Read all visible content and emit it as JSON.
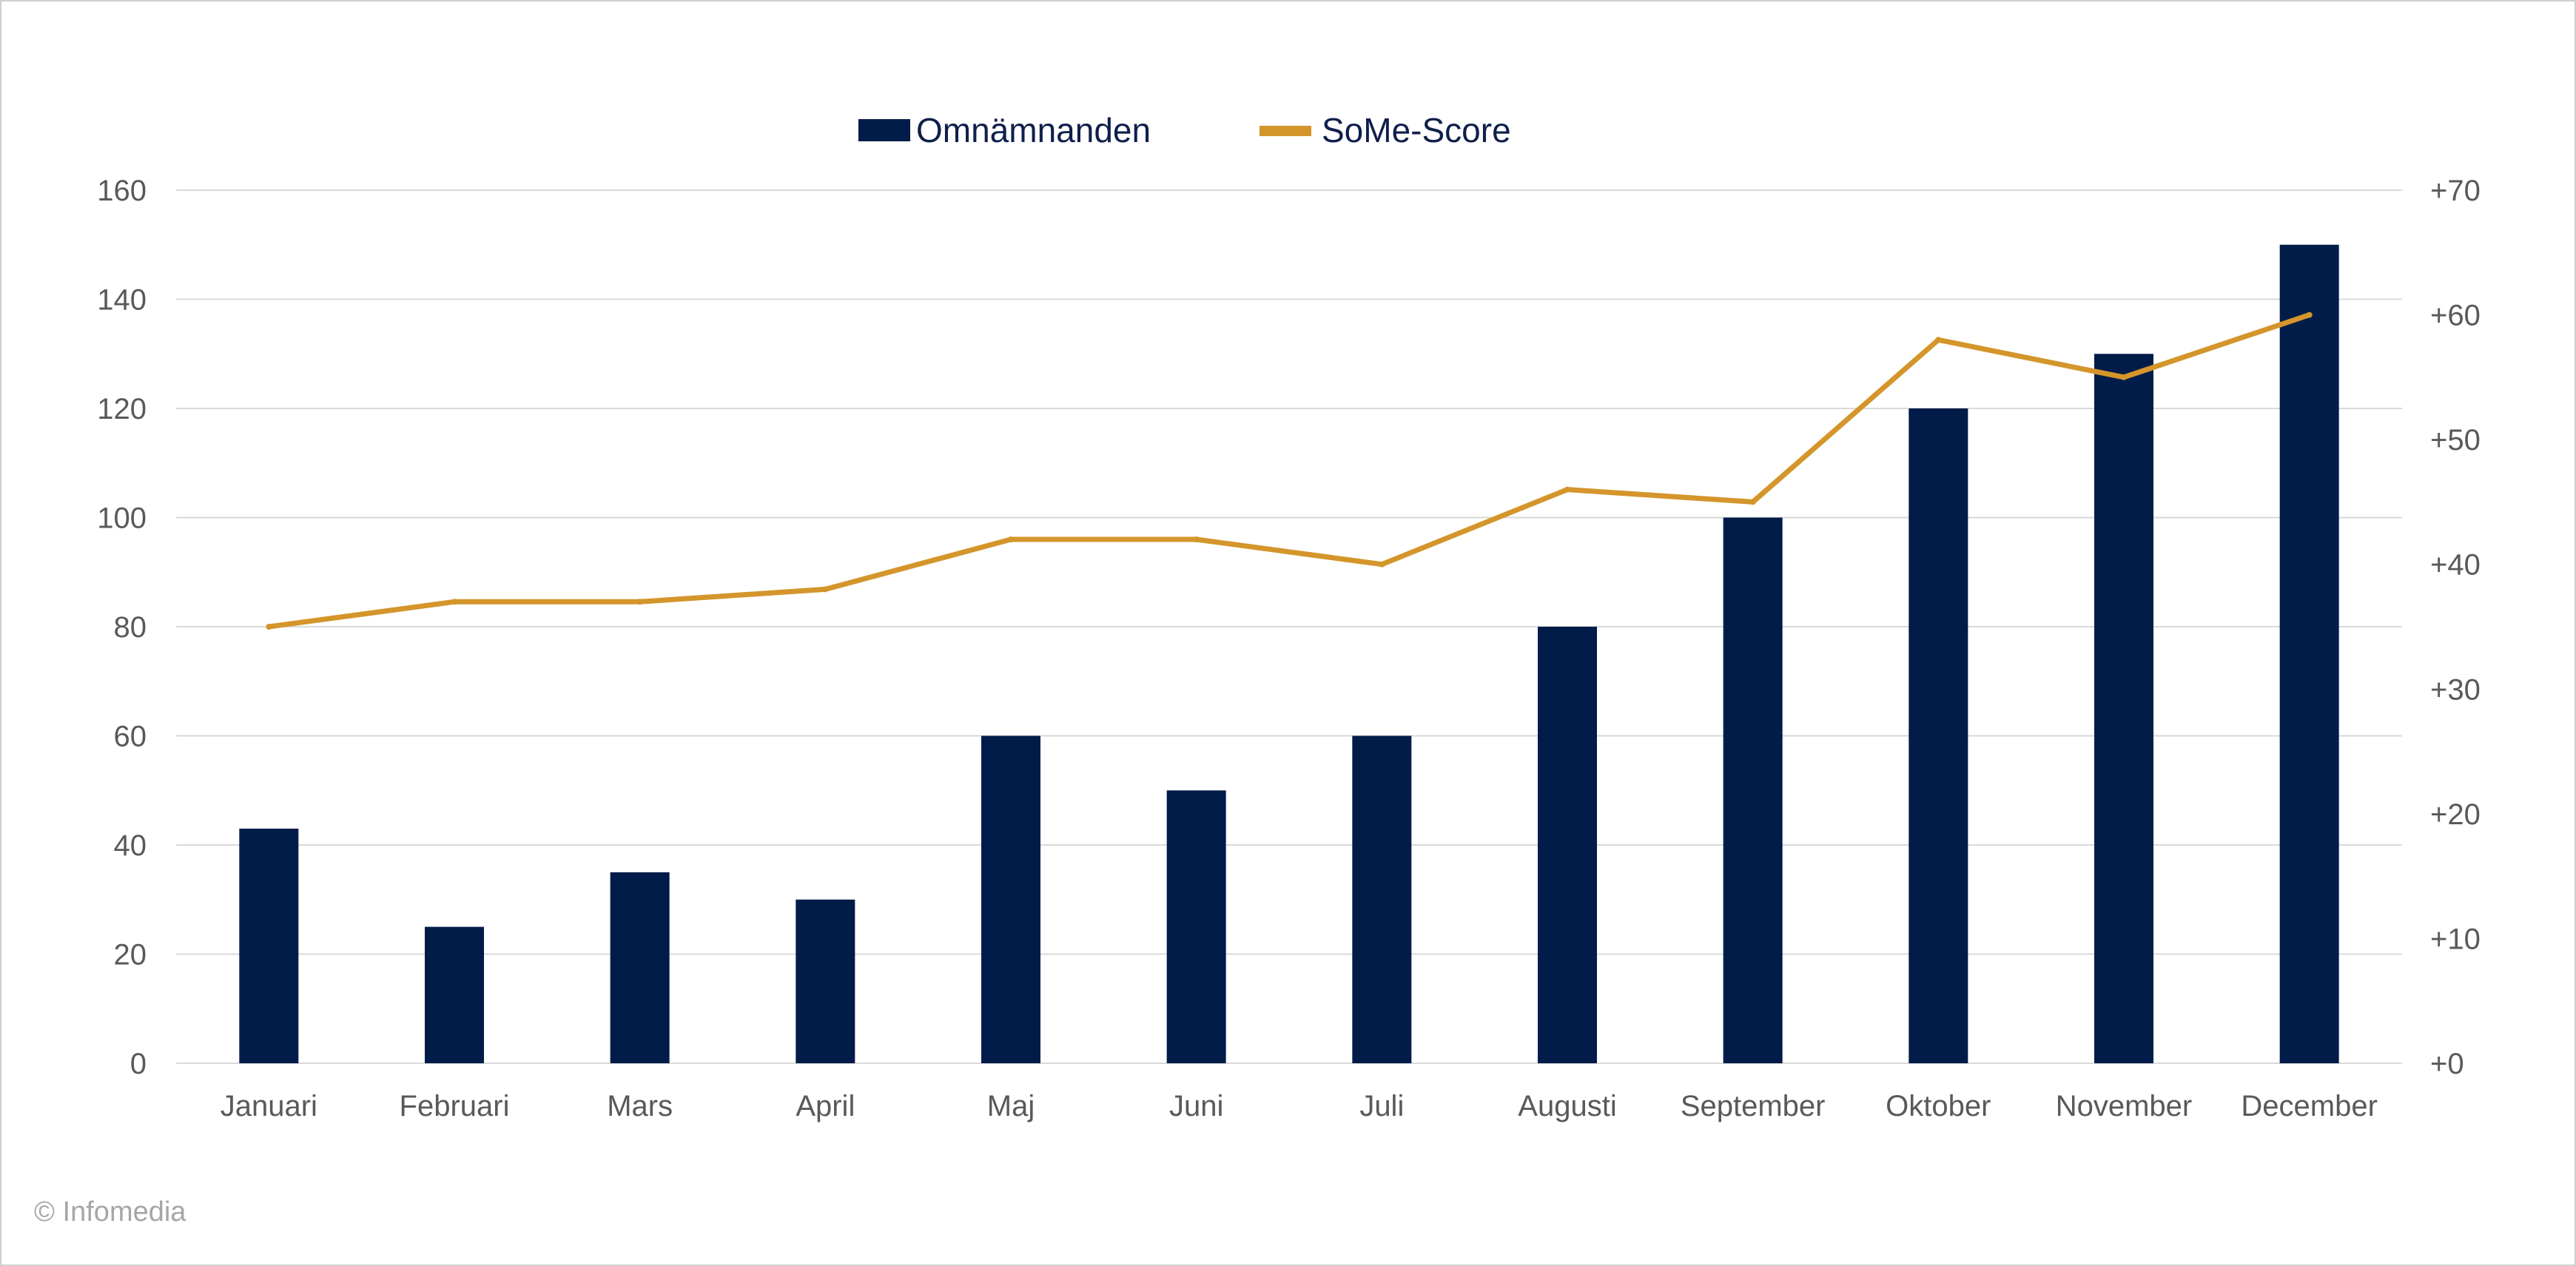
{
  "chart_data": {
    "type": "bar",
    "categories": [
      "Januari",
      "Februari",
      "Mars",
      "April",
      "Maj",
      "Juni",
      "Juli",
      "Augusti",
      "September",
      "Oktober",
      "November",
      "December"
    ],
    "series": [
      {
        "name": "Omnämnanden",
        "type": "bar",
        "axis": "left",
        "color": "#021c49",
        "values": [
          43,
          25,
          35,
          30,
          60,
          50,
          60,
          80,
          100,
          120,
          130,
          150
        ]
      },
      {
        "name": "SoMe-Score",
        "type": "line",
        "axis": "right",
        "color": "#d4952b",
        "values": [
          35,
          37,
          37,
          38,
          42,
          42,
          40,
          46,
          45,
          58,
          55,
          60
        ]
      }
    ],
    "y_left": {
      "min": 0,
      "max": 160,
      "ticks": [
        0,
        20,
        40,
        60,
        80,
        100,
        120,
        140,
        160
      ],
      "tick_labels": [
        "0",
        "20",
        "40",
        "60",
        "80",
        "100",
        "120",
        "140",
        "160"
      ]
    },
    "y_right": {
      "min": 0,
      "max": 70,
      "ticks": [
        0,
        10,
        20,
        30,
        40,
        50,
        60,
        70
      ],
      "tick_labels": [
        "+0",
        "+10",
        "+20",
        "+30",
        "+40",
        "+50",
        "+60",
        "+70"
      ]
    },
    "grid": true,
    "legend_position": "top-center"
  },
  "footer": {
    "copyright": "© Infomedia"
  }
}
